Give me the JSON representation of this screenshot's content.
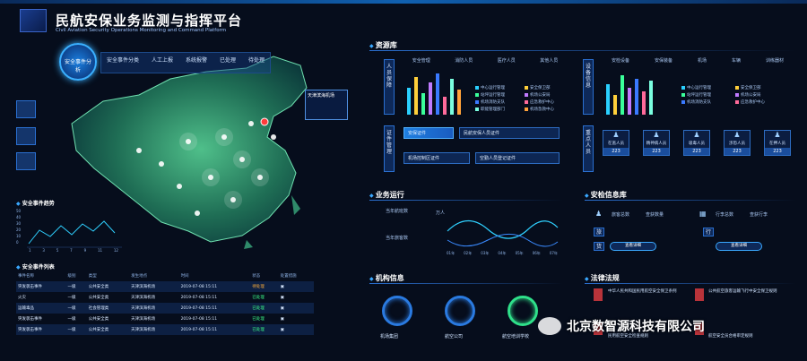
{
  "header": {
    "title": "民航安保业务监测与指挥平台",
    "subtitle": "Civil Aviation Security Operations Monitoring and Command Platform"
  },
  "map_panel": {
    "badge": "安全事件分析",
    "airport_label": "天津滨海机场",
    "stat_headers": [
      "安全事件分类",
      "人工上报",
      "系统报警",
      "已处理",
      "待处理"
    ]
  },
  "trend": {
    "title": "安全事件趋势",
    "y_ticks": [
      "50",
      "40",
      "30",
      "20",
      "10",
      "0"
    ],
    "x_ticks": [
      "1",
      "3",
      "5",
      "7",
      "9",
      "11",
      "12"
    ]
  },
  "events_table": {
    "title": "安全事件列表",
    "columns": [
      "事件名称",
      "级别",
      "类型",
      "发生地点",
      "时间",
      "状态",
      "处置措施"
    ],
    "rows": [
      {
        "name": "突发袭击事件",
        "level": "一级",
        "type": "公共安全类",
        "place": "天津滨海机场",
        "time": "2019-07-08 15:11",
        "status": "待处理",
        "status_color": "orange"
      },
      {
        "name": "火灾",
        "level": "一级",
        "type": "公共安全类",
        "place": "天津滨海机场",
        "time": "2019-07-08 15:11",
        "status": "已处理",
        "status_color": "green"
      },
      {
        "name": "运输毒品",
        "level": "一级",
        "type": "社会管理类",
        "place": "天津滨海机场",
        "time": "2019-07-08 15:11",
        "status": "已处理",
        "status_color": "green"
      },
      {
        "name": "突发袭击事件",
        "level": "一级",
        "type": "公共安全类",
        "place": "天津滨海机场",
        "time": "2019-07-08 15:11",
        "status": "已处理",
        "status_color": "green"
      },
      {
        "name": "突发袭击事件",
        "level": "一级",
        "type": "公共安全类",
        "place": "天津滨海机场",
        "time": "2019-07-08 15:11",
        "status": "已处理",
        "status_color": "green"
      }
    ]
  },
  "resource": {
    "title": "资源库",
    "personnel_tab": "人员保障",
    "equipment_tab": "设备信息",
    "personnel_top": [
      "安全管理",
      "消防人员",
      "医疗人员",
      "其他人员"
    ],
    "personnel_legend": [
      "中心运行管理",
      "安全保卫部",
      "站坪运行管理",
      "机场公安局",
      "机场消防支队",
      "应急救护中心",
      "职能管理部门",
      "机场急救中心"
    ],
    "equipment_top": [
      "安检设备",
      "安保装备",
      "机场",
      "车辆",
      "训练器材"
    ],
    "equipment_legend": [
      "中心运行管理",
      "安全保卫部",
      "站坪运行管理",
      "机场公安局",
      "机场消防支队",
      "应急救护中心"
    ],
    "cert_tab": "证件管理",
    "cert_chips": [
      "安保证件",
      "民航安保人员证件",
      "机场控制区证件",
      "空勤人员登记证件"
    ],
    "key_tab": "重点人员",
    "key_persons": [
      {
        "label": "在逃人员",
        "num": "223"
      },
      {
        "label": "精神病人员",
        "num": "223"
      },
      {
        "label": "吸毒人员",
        "num": "223"
      },
      {
        "label": "涉恐人员",
        "num": "223"
      },
      {
        "label": "在押人员",
        "num": "223"
      }
    ]
  },
  "business": {
    "title": "业务运行",
    "labels": [
      "当年航班数",
      "当年旅客数"
    ],
    "chart_label": "万人",
    "x_ticks": [
      "01年",
      "02年",
      "03年",
      "04年",
      "05年",
      "06年",
      "07年"
    ]
  },
  "inspection": {
    "title": "安检信息库",
    "labels": [
      "旅客总数",
      "查获数量",
      "行李总数",
      "查获行李"
    ],
    "side_tags": [
      "旅",
      "行",
      "货"
    ],
    "btn": "查看详细"
  },
  "agency": {
    "title": "机构信息",
    "items": [
      "机场集团",
      "航空公司",
      "航空培训学校"
    ]
  },
  "law": {
    "title": "法律法规",
    "items": [
      "中华人民共和国民用航空安全保卫条例",
      "公共航空旅客运输飞行中安全保卫规则",
      "民用航空安全检查规则",
      "航空安全员合格审定规则"
    ]
  },
  "watermark": "北京数智源科技有限公司"
}
